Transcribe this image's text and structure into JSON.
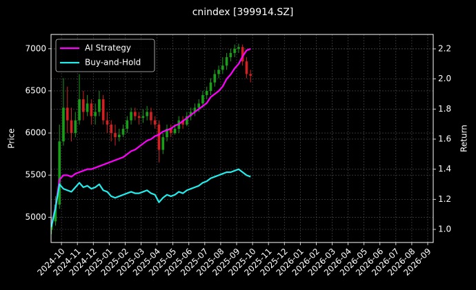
{
  "chart_data": {
    "type": "candlestick",
    "title": "cnindex [399914.SZ]",
    "y_label": "Price",
    "y2_label": "Return",
    "x": [
      "2024-09",
      "2024-09",
      "2024-09",
      "2024-09",
      "2024-10",
      "2024-10",
      "2024-10",
      "2024-10",
      "2024-11",
      "2024-11",
      "2024-11",
      "2024-11",
      "2024-12",
      "2024-12",
      "2024-12",
      "2024-12",
      "2025-01",
      "2025-01",
      "2025-01",
      "2025-01",
      "2025-02",
      "2025-02",
      "2025-02",
      "2025-02",
      "2025-03",
      "2025-03",
      "2025-03",
      "2025-03",
      "2025-04",
      "2025-04",
      "2025-04",
      "2025-04",
      "2025-05",
      "2025-05",
      "2025-05",
      "2025-05",
      "2025-06",
      "2025-06",
      "2025-06",
      "2025-06",
      "2025-07",
      "2025-07",
      "2025-07",
      "2025-07",
      "2025-08",
      "2025-08",
      "2025-08",
      "2025-08",
      "2025-09",
      "2025-09",
      "2025-09",
      "2025-09"
    ],
    "open": [
      4800,
      4850,
      4950,
      5150,
      5900,
      6300,
      6150,
      6000,
      6150,
      6400,
      6250,
      6350,
      6200,
      6250,
      6400,
      6150,
      6100,
      6000,
      5950,
      5980,
      6050,
      6150,
      6250,
      6200,
      6180,
      6200,
      6250,
      6150,
      6100,
      5800,
      5950,
      6050,
      6000,
      6050,
      6150,
      6100,
      6200,
      6250,
      6300,
      6350,
      6450,
      6500,
      6600,
      6700,
      6750,
      6800,
      6900,
      6950,
      7000,
      7020,
      6850,
      6700
    ],
    "high": [
      4900,
      5000,
      5250,
      6100,
      6650,
      6550,
      6300,
      6250,
      6700,
      6500,
      6450,
      6400,
      6350,
      6500,
      6450,
      6250,
      6150,
      6100,
      6050,
      6100,
      6200,
      6300,
      6300,
      6250,
      6280,
      6320,
      6300,
      6200,
      6150,
      6000,
      6100,
      6100,
      6100,
      6200,
      6200,
      6250,
      6300,
      6350,
      6400,
      6500,
      6550,
      6650,
      6750,
      6800,
      6900,
      6950,
      7000,
      7050,
      7060,
      7050,
      6900,
      6750
    ],
    "low": [
      4760,
      4800,
      4900,
      5100,
      5850,
      6000,
      5900,
      5950,
      6100,
      6150,
      6200,
      6100,
      6100,
      6200,
      6100,
      6000,
      5900,
      5850,
      5900,
      5950,
      6000,
      6100,
      6150,
      6100,
      6120,
      6150,
      6100,
      6050,
      5650,
      5750,
      5900,
      5950,
      5980,
      6000,
      6050,
      6080,
      6150,
      6200,
      6250,
      6300,
      6400,
      6450,
      6550,
      6650,
      6700,
      6750,
      6850,
      6900,
      6950,
      6800,
      6650,
      6600
    ],
    "close": [
      4850,
      4950,
      5150,
      5900,
      6300,
      6150,
      6000,
      6150,
      6400,
      6250,
      6350,
      6200,
      6250,
      6400,
      6150,
      6100,
      6000,
      5950,
      5980,
      6050,
      6150,
      6250,
      6200,
      6180,
      6200,
      6250,
      6150,
      6100,
      5800,
      5950,
      6050,
      6000,
      6050,
      6150,
      6100,
      6200,
      6250,
      6300,
      6350,
      6450,
      6500,
      6600,
      6700,
      6750,
      6800,
      6900,
      6950,
      7000,
      7020,
      6850,
      6700,
      6680
    ],
    "up_color": "#1a9e1a",
    "down_color": "#d42020",
    "series": [
      {
        "name": "AI Strategy",
        "color": "#ff00ff",
        "axis": "y2",
        "values": [
          1.02,
          1.03,
          1.15,
          1.33,
          1.36,
          1.36,
          1.35,
          1.37,
          1.38,
          1.39,
          1.4,
          1.4,
          1.41,
          1.42,
          1.43,
          1.44,
          1.45,
          1.46,
          1.47,
          1.48,
          1.5,
          1.52,
          1.53,
          1.55,
          1.57,
          1.59,
          1.6,
          1.62,
          1.63,
          1.65,
          1.66,
          1.67,
          1.69,
          1.7,
          1.72,
          1.74,
          1.76,
          1.78,
          1.8,
          1.82,
          1.84,
          1.88,
          1.9,
          1.92,
          1.95,
          2.0,
          2.03,
          2.07,
          2.1,
          2.15,
          2.19,
          2.2
        ]
      },
      {
        "name": "Buy-and-Hold",
        "color": "#22eeee",
        "axis": "y2",
        "values": [
          1.0,
          1.02,
          1.14,
          1.3,
          1.27,
          1.26,
          1.25,
          1.28,
          1.31,
          1.28,
          1.29,
          1.27,
          1.28,
          1.3,
          1.26,
          1.25,
          1.22,
          1.21,
          1.22,
          1.23,
          1.24,
          1.25,
          1.24,
          1.24,
          1.25,
          1.26,
          1.24,
          1.23,
          1.18,
          1.21,
          1.23,
          1.22,
          1.23,
          1.25,
          1.24,
          1.26,
          1.27,
          1.28,
          1.29,
          1.31,
          1.32,
          1.34,
          1.35,
          1.36,
          1.37,
          1.38,
          1.38,
          1.39,
          1.4,
          1.38,
          1.36,
          1.35
        ]
      }
    ],
    "xlim": [
      "2024-09",
      "2026-09"
    ],
    "xticks": [
      "2024-10",
      "2024-11",
      "2024-12",
      "2025-01",
      "2025-02",
      "2025-03",
      "2025-04",
      "2025-05",
      "2025-06",
      "2025-07",
      "2025-08",
      "2025-09",
      "2025-10",
      "2025-11",
      "2025-12",
      "2026-01",
      "2026-02",
      "2026-03",
      "2026-04",
      "2026-05",
      "2026-06",
      "2026-07",
      "2026-08",
      "2026-09"
    ],
    "ylim": [
      4700,
      7170
    ],
    "yticks": [
      5000,
      5500,
      6000,
      6500,
      7000
    ],
    "y2lim": [
      0.913,
      2.296
    ],
    "y2ticks": [
      {
        "value": 1.0,
        "label": "1.0"
      },
      1.2,
      1.4,
      1.6,
      1.8,
      {
        "value": 2.0,
        "label": "2.0"
      },
      2.2
    ],
    "grid": true,
    "legend": "upper left"
  }
}
